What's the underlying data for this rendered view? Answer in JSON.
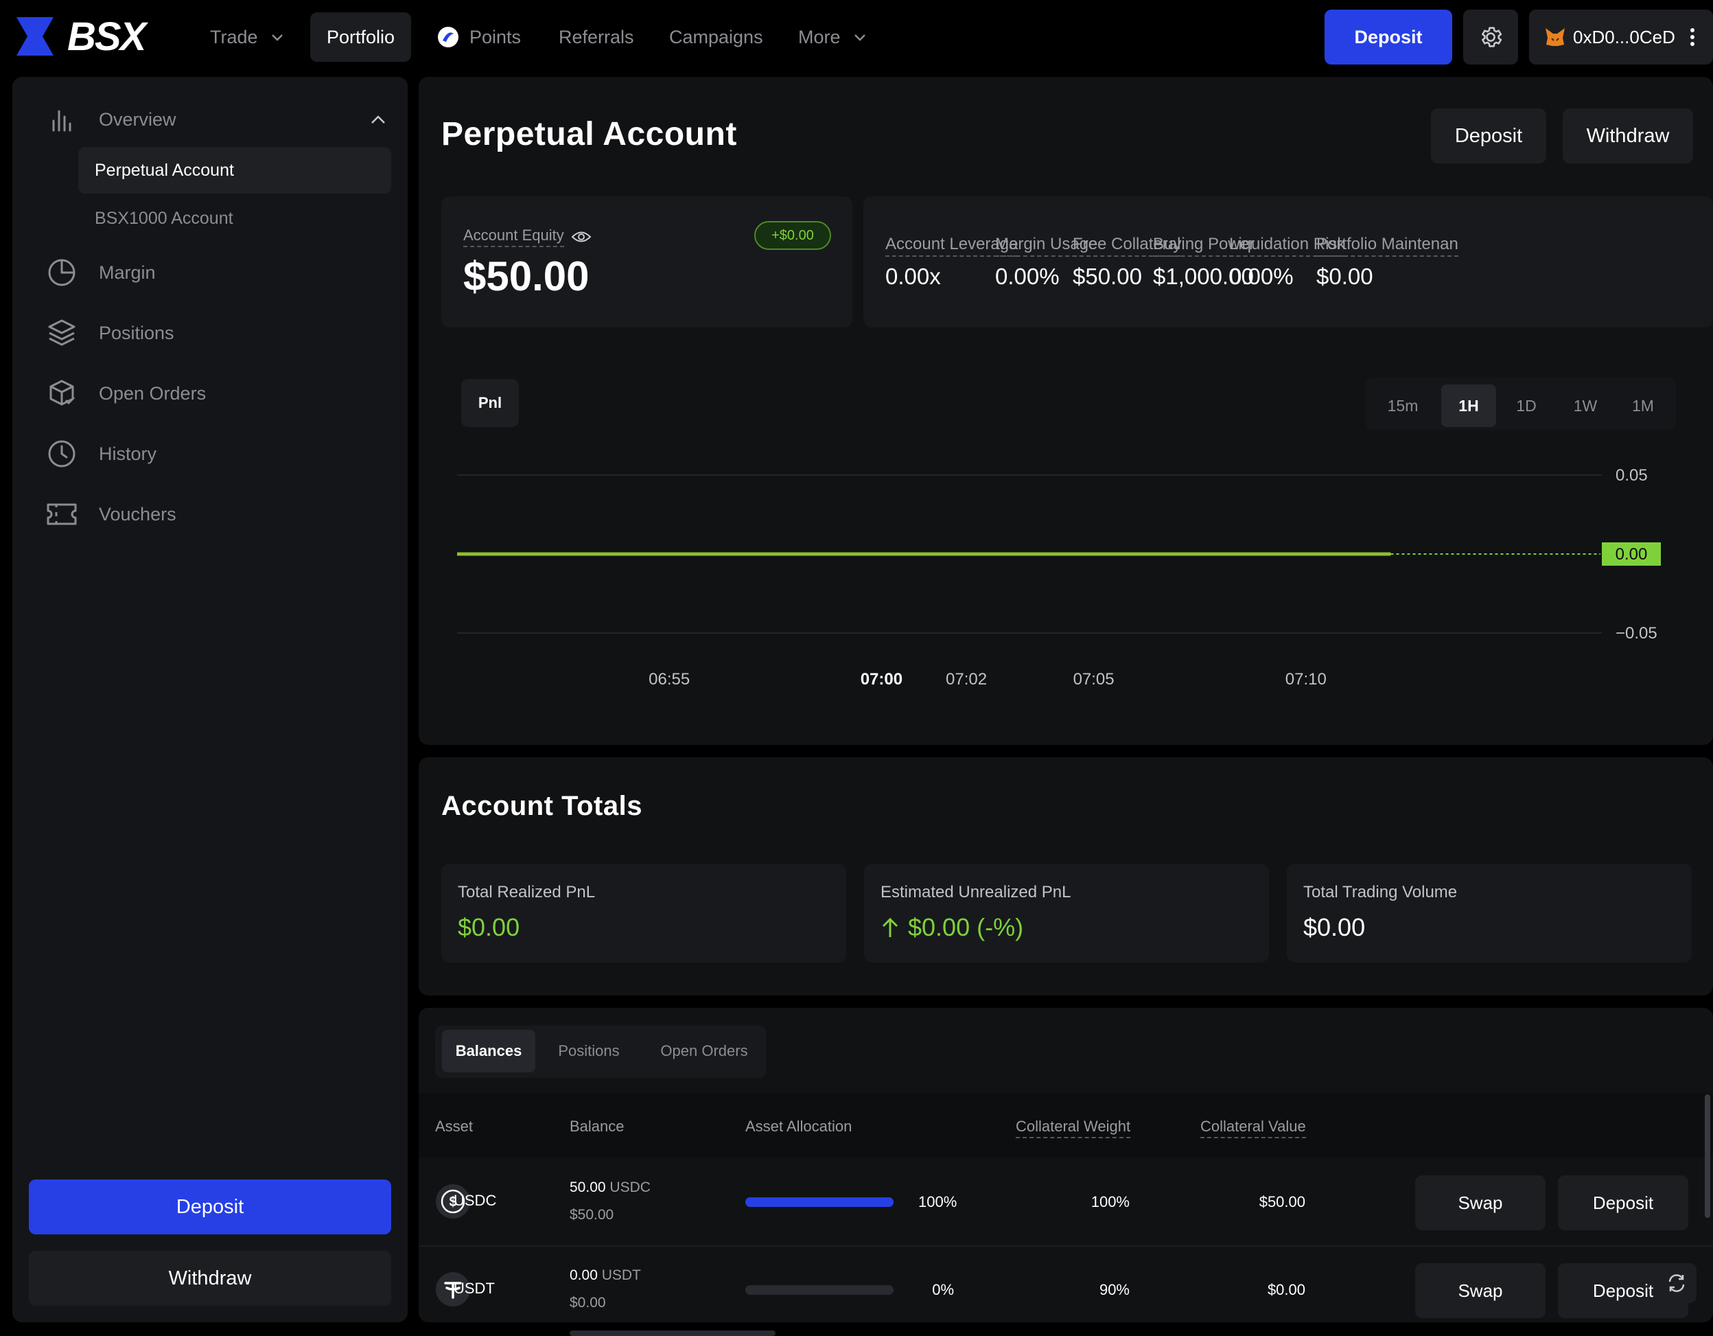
{
  "nav": {
    "brand": "BSX",
    "trade": "Trade",
    "portfolio": "Portfolio",
    "points": "Points",
    "referrals": "Referrals",
    "campaigns": "Campaigns",
    "more": "More",
    "deposit": "Deposit",
    "wallet": "0xD0...0CeD"
  },
  "sidebar": {
    "overview": "Overview",
    "perpetual_account": "Perpetual Account",
    "bsx1000_account": "BSX1000 Account",
    "margin": "Margin",
    "positions": "Positions",
    "open_orders": "Open Orders",
    "history": "History",
    "vouchers": "Vouchers",
    "deposit": "Deposit",
    "withdraw": "Withdraw"
  },
  "perpetual": {
    "title": "Perpetual Account",
    "deposit": "Deposit",
    "withdraw": "Withdraw",
    "equity_label": "Account Equity",
    "equity_value": "$50.00",
    "equity_change": "+$0.00",
    "stats": [
      {
        "label": "Account Leverage",
        "value": "0.00x"
      },
      {
        "label": "Margin Usage",
        "value": "0.00%"
      },
      {
        "label": "Free Collateral",
        "value": "$50.00"
      },
      {
        "label": "Buying Power",
        "value": "$1,000.00"
      },
      {
        "label": "Liquidation Risk",
        "value": "0.00%"
      },
      {
        "label": "Portfolio Maintenan",
        "value": "$0.00"
      }
    ]
  },
  "chart_controls": {
    "metric_tab": "Pnl",
    "timeframes": [
      "15m",
      "1H",
      "1D",
      "1W",
      "1M"
    ],
    "active_timeframe": "1H"
  },
  "chart_data": {
    "type": "line",
    "series": [
      {
        "x": [
          "06:50",
          "07:12"
        ],
        "values": [
          0,
          0
        ]
      }
    ],
    "x_ticks": [
      "06:55",
      "07:00",
      "07:02",
      "07:05",
      "07:10"
    ],
    "y_ticks": [
      "0.05",
      "0.00",
      "−0.05"
    ],
    "ylim": [
      -0.05,
      0.05
    ],
    "last_value_label": "0.00",
    "line_color": "#8fbf2e",
    "label_color": "#7fd13b"
  },
  "totals": {
    "title": "Account Totals",
    "realized_label": "Total Realized PnL",
    "realized_value": "$0.00",
    "unrealized_label": "Estimated Unrealized PnL",
    "unrealized_value": "$0.00 (-%)",
    "volume_label": "Total Trading Volume",
    "volume_value": "$0.00"
  },
  "balances": {
    "tabs": [
      "Balances",
      "Positions",
      "Open Orders"
    ],
    "columns": [
      "Asset",
      "Balance",
      "Asset Allocation",
      "Collateral Weight",
      "Collateral Value"
    ],
    "rows": [
      {
        "asset": "USDC",
        "balance": "50.00",
        "unit": "USDC",
        "usd": "$50.00",
        "allocation_pct": "100%",
        "allocation": 1.0,
        "weight": "100%",
        "value": "$50.00",
        "swap": "Swap",
        "deposit": "Deposit"
      },
      {
        "asset": "USDT",
        "balance": "0.00",
        "unit": "USDT",
        "usd": "$0.00",
        "allocation_pct": "0%",
        "allocation": 0.0,
        "weight": "90%",
        "value": "$0.00",
        "swap": "Swap",
        "deposit": "Deposit"
      }
    ]
  },
  "colors": {
    "accent": "#2640e6",
    "positive": "#7fd13b"
  }
}
